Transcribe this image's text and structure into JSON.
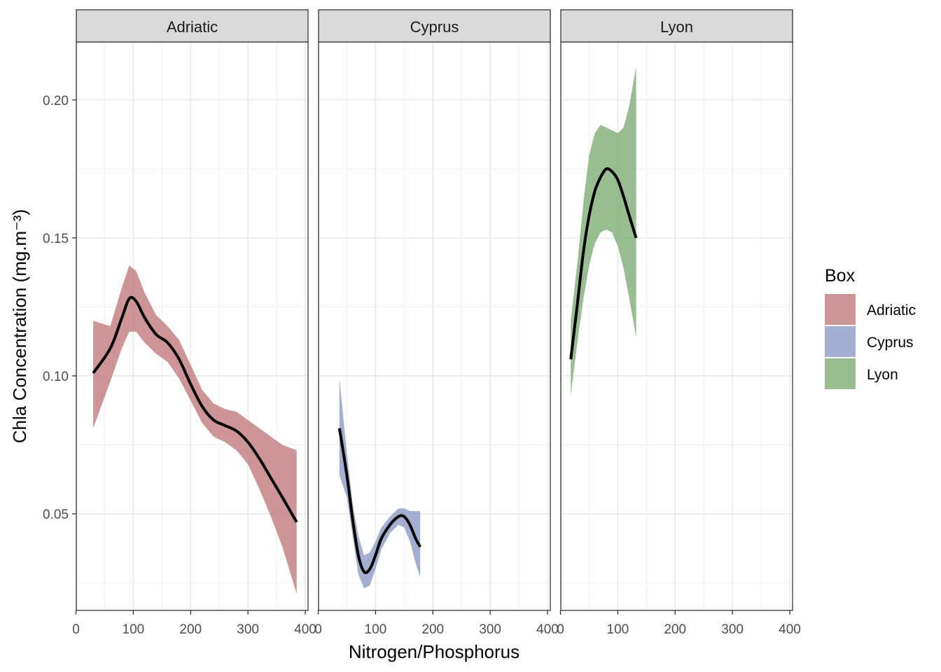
{
  "chart_data": {
    "type": "area",
    "xlabel": "Nitrogen/Phosphorus",
    "ylabel": "Chla Concentration (mg.m⁻³)",
    "xlim": [
      0,
      400
    ],
    "ylim": [
      0.015,
      0.221
    ],
    "x_ticks": [
      0,
      100,
      200,
      300,
      400
    ],
    "x_tick_labels": [
      "0",
      "100",
      "200",
      "300",
      "400"
    ],
    "y_ticks": [
      0.05,
      0.1,
      0.15,
      0.2
    ],
    "y_tick_labels": [
      "0.05",
      "0.10",
      "0.15",
      "0.20"
    ],
    "grid": true,
    "legend": {
      "title": "Box",
      "position": "right",
      "entries": [
        "Adriatic",
        "Cyprus",
        "Lyon"
      ]
    },
    "panels": [
      {
        "name": "Adriatic",
        "color": "#c0777a",
        "x": [
          30,
          60,
          80,
          93,
          105,
          120,
          140,
          160,
          180,
          200,
          220,
          240,
          260,
          280,
          300,
          320,
          340,
          360,
          385
        ],
        "y": [
          0.101,
          0.11,
          0.121,
          0.128,
          0.127,
          0.121,
          0.115,
          0.112,
          0.106,
          0.097,
          0.089,
          0.084,
          0.082,
          0.08,
          0.076,
          0.07,
          0.063,
          0.056,
          0.047
        ],
        "lower": [
          0.081,
          0.098,
          0.11,
          0.116,
          0.116,
          0.112,
          0.108,
          0.105,
          0.099,
          0.091,
          0.083,
          0.078,
          0.076,
          0.073,
          0.068,
          0.059,
          0.049,
          0.038,
          0.021
        ],
        "upper": [
          0.12,
          0.118,
          0.132,
          0.14,
          0.138,
          0.13,
          0.122,
          0.118,
          0.113,
          0.104,
          0.095,
          0.09,
          0.088,
          0.087,
          0.084,
          0.081,
          0.078,
          0.075,
          0.073
        ]
      },
      {
        "name": "Cyprus",
        "color": "#8899c4",
        "x": [
          37,
          50,
          60,
          70,
          80,
          90,
          100,
          110,
          125,
          140,
          150,
          160,
          170,
          178
        ],
        "y": [
          0.081,
          0.064,
          0.048,
          0.035,
          0.029,
          0.03,
          0.035,
          0.041,
          0.046,
          0.049,
          0.049,
          0.046,
          0.041,
          0.038
        ],
        "lower": [
          0.064,
          0.056,
          0.042,
          0.028,
          0.023,
          0.024,
          0.03,
          0.037,
          0.043,
          0.046,
          0.045,
          0.04,
          0.032,
          0.027
        ],
        "upper": [
          0.099,
          0.072,
          0.054,
          0.042,
          0.035,
          0.036,
          0.04,
          0.045,
          0.049,
          0.052,
          0.052,
          0.051,
          0.051,
          0.051
        ]
      },
      {
        "name": "Lyon",
        "color": "#7aab71",
        "x": [
          18,
          30,
          40,
          50,
          60,
          70,
          80,
          90,
          100,
          110,
          120,
          132
        ],
        "y": [
          0.106,
          0.127,
          0.145,
          0.158,
          0.167,
          0.172,
          0.175,
          0.174,
          0.171,
          0.165,
          0.158,
          0.15
        ],
        "lower": [
          0.093,
          0.113,
          0.128,
          0.14,
          0.148,
          0.152,
          0.153,
          0.152,
          0.147,
          0.139,
          0.128,
          0.114
        ],
        "upper": [
          0.12,
          0.142,
          0.163,
          0.18,
          0.188,
          0.191,
          0.19,
          0.189,
          0.188,
          0.19,
          0.198,
          0.212
        ]
      }
    ]
  }
}
